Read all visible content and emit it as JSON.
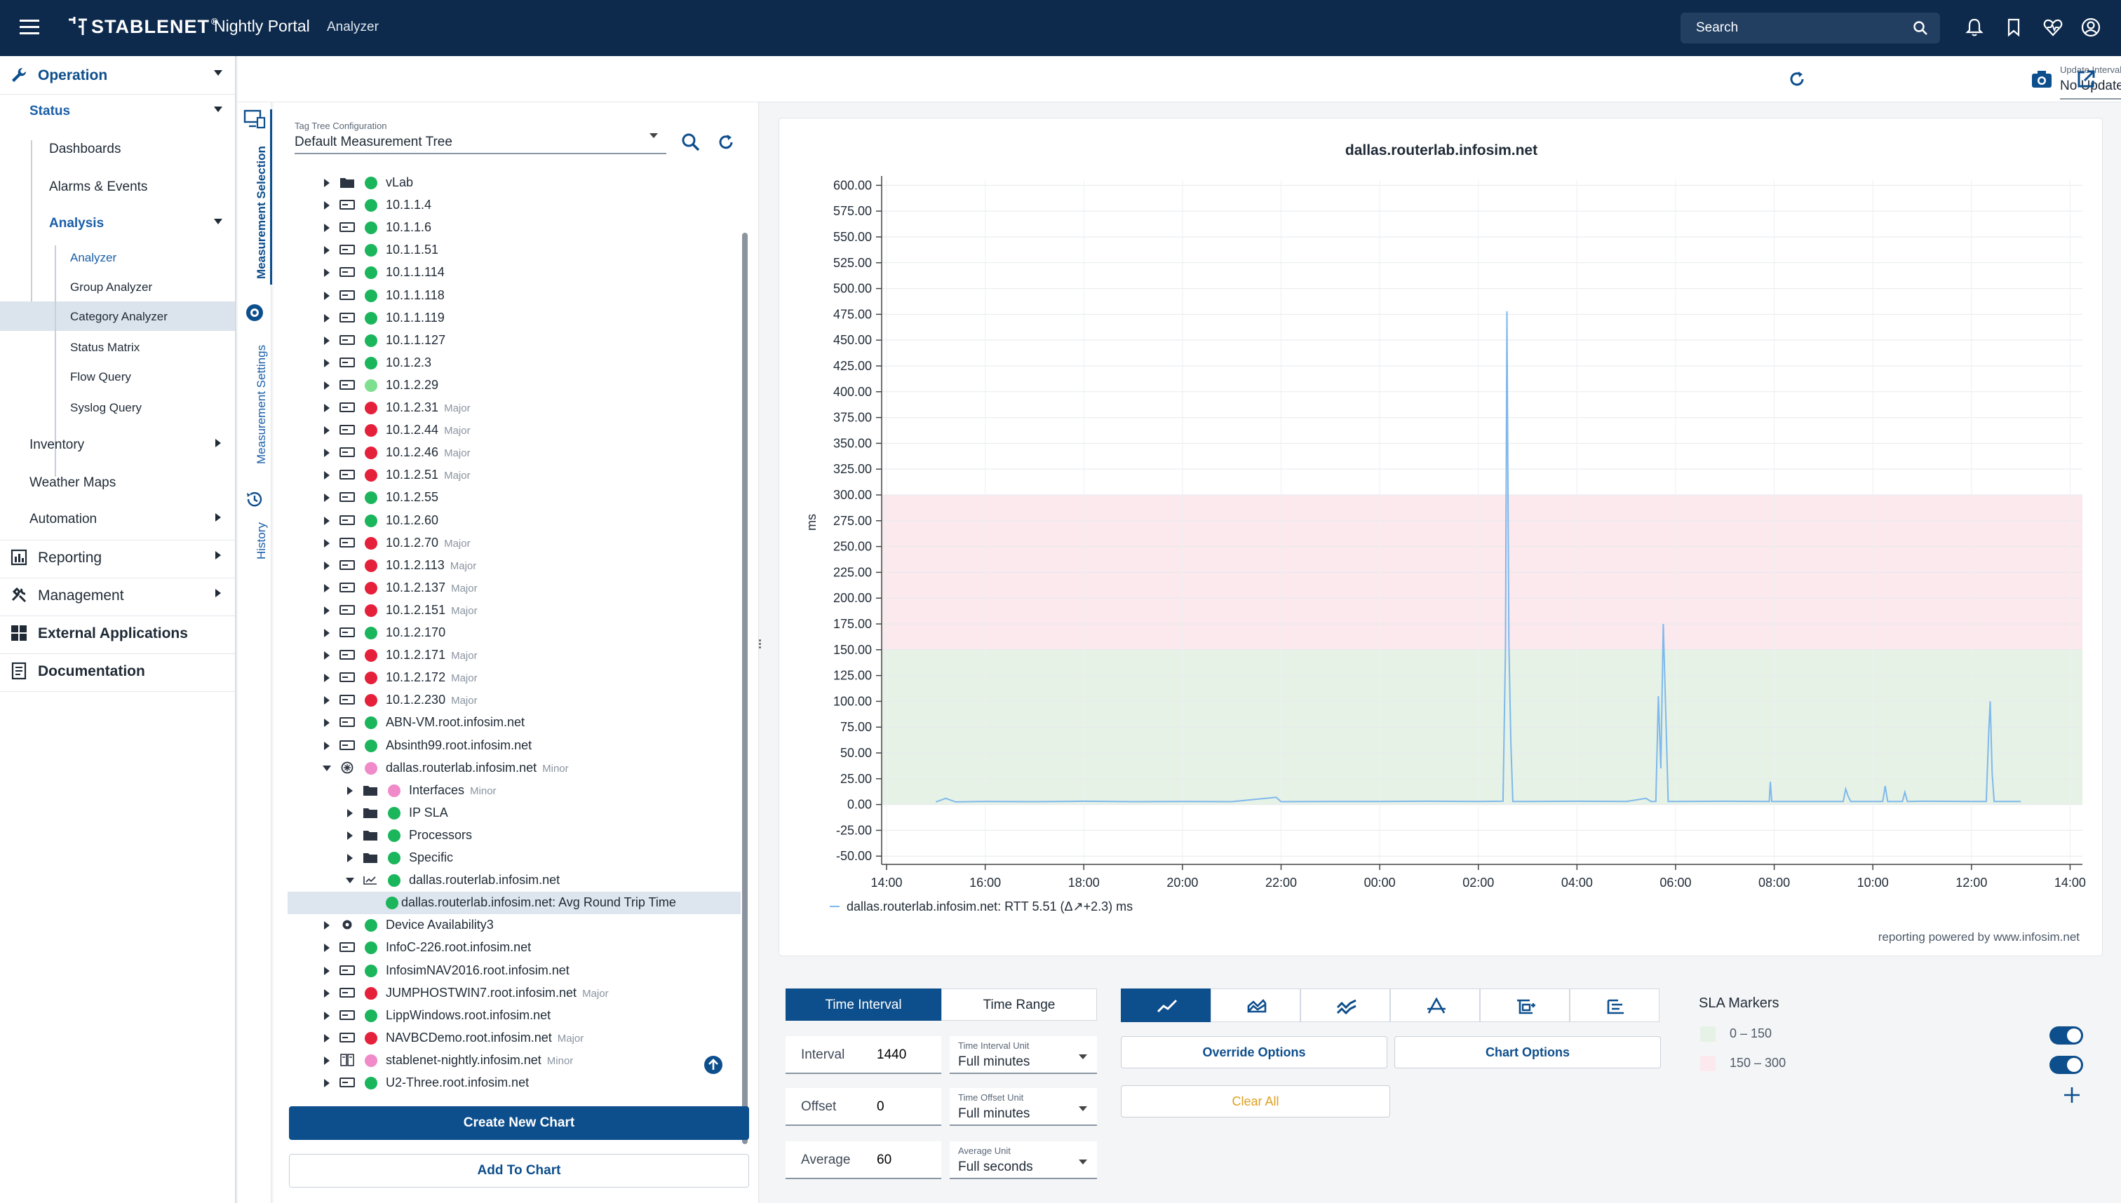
{
  "header": {
    "brand": "STABLENET",
    "brand_reg": "®",
    "portal": "Nightly Portal",
    "crumb": "Analyzer",
    "search_placeholder": "Search"
  },
  "nav": {
    "operation": "Operation",
    "status": "Status",
    "dashboards": "Dashboards",
    "alarms": "Alarms & Events",
    "analysis": "Analysis",
    "analyzer": "Analyzer",
    "group_analyzer": "Group Analyzer",
    "category_analyzer": "Category Analyzer",
    "status_matrix": "Status Matrix",
    "flow_query": "Flow Query",
    "syslog_query": "Syslog Query",
    "inventory": "Inventory",
    "weather_maps": "Weather Maps",
    "automation": "Automation",
    "reporting": "Reporting",
    "management": "Management",
    "external_apps": "External Applications",
    "documentation": "Documentation"
  },
  "vtabs": {
    "selection": "Measurement Selection",
    "settings": "Measurement Settings",
    "history": "History"
  },
  "tree": {
    "config_label": "Tag Tree Configuration",
    "config_value": "Default Measurement Tree",
    "rows": [
      {
        "name": "vLab",
        "sev": "",
        "status": "green",
        "icon": "folder",
        "level": 0,
        "open": false
      },
      {
        "name": "10.1.1.4",
        "sev": "",
        "status": "green",
        "icon": "device",
        "level": 0,
        "open": false
      },
      {
        "name": "10.1.1.6",
        "sev": "",
        "status": "green",
        "icon": "device",
        "level": 0,
        "open": false
      },
      {
        "name": "10.1.1.51",
        "sev": "",
        "status": "green",
        "icon": "device",
        "level": 0,
        "open": false
      },
      {
        "name": "10.1.1.114",
        "sev": "",
        "status": "green",
        "icon": "device",
        "level": 0,
        "open": false
      },
      {
        "name": "10.1.1.118",
        "sev": "",
        "status": "green",
        "icon": "device",
        "level": 0,
        "open": false
      },
      {
        "name": "10.1.1.119",
        "sev": "",
        "status": "green",
        "icon": "device",
        "level": 0,
        "open": false
      },
      {
        "name": "10.1.1.127",
        "sev": "",
        "status": "green",
        "icon": "device",
        "level": 0,
        "open": false
      },
      {
        "name": "10.1.2.3",
        "sev": "",
        "status": "green",
        "icon": "device",
        "level": 0,
        "open": false
      },
      {
        "name": "10.1.2.29",
        "sev": "",
        "status": "lightgreen",
        "icon": "device",
        "level": 0,
        "open": false
      },
      {
        "name": "10.1.2.31",
        "sev": "Major",
        "status": "red",
        "icon": "device",
        "level": 0,
        "open": false
      },
      {
        "name": "10.1.2.44",
        "sev": "Major",
        "status": "red",
        "icon": "device",
        "level": 0,
        "open": false
      },
      {
        "name": "10.1.2.46",
        "sev": "Major",
        "status": "red",
        "icon": "device",
        "level": 0,
        "open": false
      },
      {
        "name": "10.1.2.51",
        "sev": "Major",
        "status": "red",
        "icon": "device",
        "level": 0,
        "open": false
      },
      {
        "name": "10.1.2.55",
        "sev": "",
        "status": "green",
        "icon": "device",
        "level": 0,
        "open": false
      },
      {
        "name": "10.1.2.60",
        "sev": "",
        "status": "green",
        "icon": "device",
        "level": 0,
        "open": false
      },
      {
        "name": "10.1.2.70",
        "sev": "Major",
        "status": "red",
        "icon": "device",
        "level": 0,
        "open": false
      },
      {
        "name": "10.1.2.113",
        "sev": "Major",
        "status": "red",
        "icon": "device",
        "level": 0,
        "open": false
      },
      {
        "name": "10.1.2.137",
        "sev": "Major",
        "status": "red",
        "icon": "device",
        "level": 0,
        "open": false
      },
      {
        "name": "10.1.2.151",
        "sev": "Major",
        "status": "red",
        "icon": "device",
        "level": 0,
        "open": false
      },
      {
        "name": "10.1.2.170",
        "sev": "",
        "status": "green",
        "icon": "device",
        "level": 0,
        "open": false
      },
      {
        "name": "10.1.2.171",
        "sev": "Major",
        "status": "red",
        "icon": "device",
        "level": 0,
        "open": false
      },
      {
        "name": "10.1.2.172",
        "sev": "Major",
        "status": "red",
        "icon": "device",
        "level": 0,
        "open": false
      },
      {
        "name": "10.1.2.230",
        "sev": "Major",
        "status": "red",
        "icon": "device",
        "level": 0,
        "open": false
      },
      {
        "name": "ABN-VM.root.infosim.net",
        "sev": "",
        "status": "green",
        "icon": "device",
        "level": 0,
        "open": false
      },
      {
        "name": "Absinth99.root.infosim.net",
        "sev": "",
        "status": "green",
        "icon": "device",
        "level": 0,
        "open": false
      },
      {
        "name": "dallas.routerlab.infosim.net",
        "sev": "Minor",
        "status": "pink",
        "icon": "router",
        "level": 0,
        "open": true
      },
      {
        "name": "Interfaces",
        "sev": "Minor",
        "status": "pink",
        "icon": "folder",
        "level": 1,
        "open": false
      },
      {
        "name": "IP SLA",
        "sev": "",
        "status": "green",
        "icon": "folder",
        "level": 1,
        "open": false
      },
      {
        "name": "Processors",
        "sev": "",
        "status": "green",
        "icon": "folder",
        "level": 1,
        "open": false
      },
      {
        "name": "Specific",
        "sev": "",
        "status": "green",
        "icon": "folder",
        "level": 1,
        "open": false
      },
      {
        "name": "dallas.routerlab.infosim.net",
        "sev": "",
        "status": "green",
        "icon": "ping",
        "level": 1,
        "open": true
      },
      {
        "name": "dallas.routerlab.infosim.net: Avg Round Trip Time",
        "sev": "",
        "status": "green",
        "icon": "none",
        "level": 2,
        "open": null,
        "selected": true
      },
      {
        "name": "Device Availability3",
        "sev": "",
        "status": "green",
        "icon": "gear",
        "level": 0,
        "open": false
      },
      {
        "name": "InfoC-226.root.infosim.net",
        "sev": "",
        "status": "green",
        "icon": "device",
        "level": 0,
        "open": false
      },
      {
        "name": "InfosimNAV2016.root.infosim.net",
        "sev": "",
        "status": "green",
        "icon": "device",
        "level": 0,
        "open": false
      },
      {
        "name": "JUMPHOSTWIN7.root.infosim.net",
        "sev": "Major",
        "status": "red",
        "icon": "device",
        "level": 0,
        "open": false
      },
      {
        "name": "LippWindows.root.infosim.net",
        "sev": "",
        "status": "green",
        "icon": "device",
        "level": 0,
        "open": false
      },
      {
        "name": "NAVBCDemo.root.infosim.net",
        "sev": "Major",
        "status": "red",
        "icon": "device",
        "level": 0,
        "open": false
      },
      {
        "name": "stablenet-nightly.infosim.net",
        "sev": "Minor",
        "status": "pink",
        "icon": "server",
        "level": 0,
        "open": false
      },
      {
        "name": "U2-Three.root.infosim.net",
        "sev": "",
        "status": "green",
        "icon": "device",
        "level": 0,
        "open": false
      }
    ],
    "create_chart": "Create New Chart",
    "add_to_chart": "Add To Chart"
  },
  "toolbar": {
    "update_label": "Update Interval",
    "update_value": "No Update"
  },
  "chart_data": {
    "type": "line",
    "title": "dallas.routerlab.infosim.net",
    "ylabel": "ms",
    "xlabel": "",
    "ylim": [
      -60,
      600
    ],
    "yticks": [
      "600.00",
      "575.00",
      "550.00",
      "525.00",
      "500.00",
      "475.00",
      "450.00",
      "425.00",
      "400.00",
      "375.00",
      "350.00",
      "325.00",
      "300.00",
      "275.00",
      "250.00",
      "225.00",
      "200.00",
      "175.00",
      "150.00",
      "125.00",
      "100.00",
      "75.00",
      "50.00",
      "25.00",
      "0.00",
      "-25.00",
      "-50.00"
    ],
    "xticks": [
      "14:00",
      "16:00",
      "18:00",
      "20:00",
      "22:00",
      "00:00",
      "02:00",
      "04:00",
      "06:00",
      "08:00",
      "10:00",
      "12:00",
      "14:00"
    ],
    "xlim_hours": [
      13.9,
      16.1
    ],
    "sla_bands": [
      {
        "from": 0,
        "to": 150,
        "color": "#e6f2e6"
      },
      {
        "from": 150,
        "to": 300,
        "color": "#fbe9ee"
      }
    ],
    "series": [
      {
        "name": "dallas.routerlab.infosim.net: RTT 5.51 (Δ↗+2.3) ms",
        "color": "#7fb8ec",
        "points": [
          [
            15.0,
            2.5
          ],
          [
            15.2,
            6.0
          ],
          [
            15.4,
            2.5
          ],
          [
            16.0,
            3.0
          ],
          [
            17.0,
            2.8
          ],
          [
            18.0,
            3.2
          ],
          [
            19.0,
            2.8
          ],
          [
            20.0,
            3.0
          ],
          [
            21.0,
            2.8
          ],
          [
            21.9,
            7.0
          ],
          [
            22.0,
            2.8
          ],
          [
            23.0,
            3.0
          ],
          [
            24.0,
            2.9
          ],
          [
            25.0,
            3.2
          ],
          [
            26.0,
            3.0
          ],
          [
            26.5,
            3.2
          ],
          [
            26.55,
            150.0
          ],
          [
            26.58,
            478.0
          ],
          [
            26.62,
            155.0
          ],
          [
            26.66,
            60.0
          ],
          [
            26.7,
            3.0
          ],
          [
            27.0,
            3.0
          ],
          [
            28.0,
            3.2
          ],
          [
            29.0,
            3.0
          ],
          [
            29.4,
            6.0
          ],
          [
            29.5,
            3.0
          ],
          [
            29.6,
            3.0
          ],
          [
            29.65,
            105.0
          ],
          [
            29.7,
            35.0
          ],
          [
            29.75,
            175.0
          ],
          [
            29.8,
            90.0
          ],
          [
            29.85,
            3.0
          ],
          [
            30.0,
            3.0
          ],
          [
            31.0,
            3.2
          ],
          [
            31.9,
            3.0
          ],
          [
            31.92,
            22.0
          ],
          [
            31.95,
            3.0
          ],
          [
            33.4,
            3.0
          ],
          [
            33.45,
            15.0
          ],
          [
            33.5,
            8.0
          ],
          [
            33.55,
            3.0
          ],
          [
            34.0,
            3.0
          ],
          [
            34.2,
            3.0
          ],
          [
            34.25,
            18.0
          ],
          [
            34.3,
            3.0
          ],
          [
            34.6,
            3.0
          ],
          [
            34.65,
            12.0
          ],
          [
            34.7,
            3.0
          ],
          [
            35.0,
            3.2
          ],
          [
            36.0,
            3.0
          ],
          [
            36.3,
            3.0
          ],
          [
            36.35,
            70.0
          ],
          [
            36.38,
            100.0
          ],
          [
            36.42,
            30.0
          ],
          [
            36.46,
            3.0
          ],
          [
            37.0,
            3.0
          ]
        ]
      }
    ],
    "legend_position": "bottom-left",
    "grid": true
  },
  "chart_footer": "reporting powered by www.infosim.net",
  "controls": {
    "tab_interval": "Time Interval",
    "tab_range": "Time Range",
    "interval_label": "Interval",
    "interval_value": "1440",
    "interval_unit_label": "Time Interval Unit",
    "interval_unit_value": "Full minutes",
    "offset_label": "Offset",
    "offset_value": "0",
    "offset_unit_label": "Time Offset Unit",
    "offset_unit_value": "Full minutes",
    "average_label": "Average",
    "average_value": "60",
    "average_unit_label": "Average Unit",
    "average_unit_value": "Full seconds",
    "override_options": "Override Options",
    "chart_options": "Chart Options",
    "clear_all": "Clear All"
  },
  "sla": {
    "title": "SLA Markers",
    "items": [
      {
        "label": "0 – 150",
        "color": "#e6f2e6",
        "on": true
      },
      {
        "label": "150 – 300",
        "color": "#fbe9ee",
        "on": true
      }
    ]
  },
  "colors": {
    "navy": "#0d2a4c",
    "accent": "#0d4e8c",
    "green": "#1bb55c",
    "lightgreen": "#7ee08f",
    "red": "#e5203a",
    "pink": "#f08ac8",
    "clear_all": "#e0a020"
  }
}
